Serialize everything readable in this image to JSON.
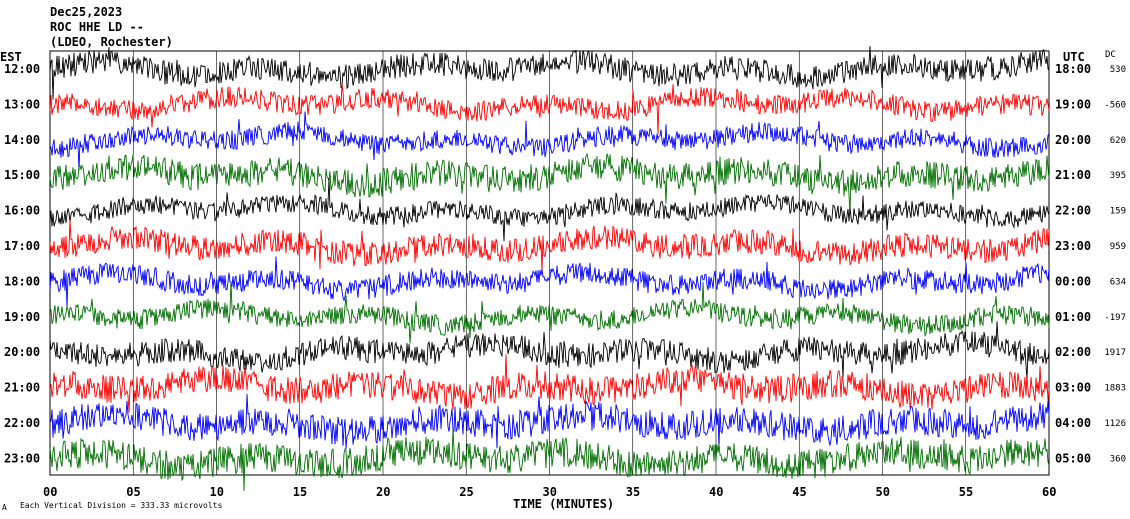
{
  "header": {
    "date": "Dec25,2023",
    "station": "ROC HHE LD --",
    "location": "(LDEO, Rochester)"
  },
  "left_axis_label": "EST",
  "right_axis_label": "UTC",
  "dc_label": "DC",
  "footer": {
    "scale_note": "Each Vertical Division = 333.33 microvolts"
  },
  "chart_data": {
    "type": "line",
    "xlabel": "TIME (MINUTES)",
    "x_ticks": [
      "00",
      "05",
      "10",
      "15",
      "20",
      "25",
      "30",
      "35",
      "40",
      "45",
      "50",
      "55",
      "60"
    ],
    "xlim": [
      0,
      60
    ],
    "grid": true,
    "trace_colors": [
      "#000000",
      "#ff0000",
      "#0000ff",
      "#007000"
    ],
    "rows": [
      {
        "est": "12:00",
        "utc": "18:00",
        "dc": "530"
      },
      {
        "est": "13:00",
        "utc": "19:00",
        "dc": "-560"
      },
      {
        "est": "14:00",
        "utc": "20:00",
        "dc": "620"
      },
      {
        "est": "15:00",
        "utc": "21:00",
        "dc": "395"
      },
      {
        "est": "16:00",
        "utc": "22:00",
        "dc": "159"
      },
      {
        "est": "17:00",
        "utc": "23:00",
        "dc": "959"
      },
      {
        "est": "18:00",
        "utc": "00:00",
        "dc": "634"
      },
      {
        "est": "19:00",
        "utc": "01:00",
        "dc": "-197"
      },
      {
        "est": "20:00",
        "utc": "02:00",
        "dc": "1917"
      },
      {
        "est": "21:00",
        "utc": "03:00",
        "dc": "1883"
      },
      {
        "est": "22:00",
        "utc": "04:00",
        "dc": "1126"
      },
      {
        "est": "23:00",
        "utc": "05:00",
        "dc": "360"
      }
    ]
  }
}
